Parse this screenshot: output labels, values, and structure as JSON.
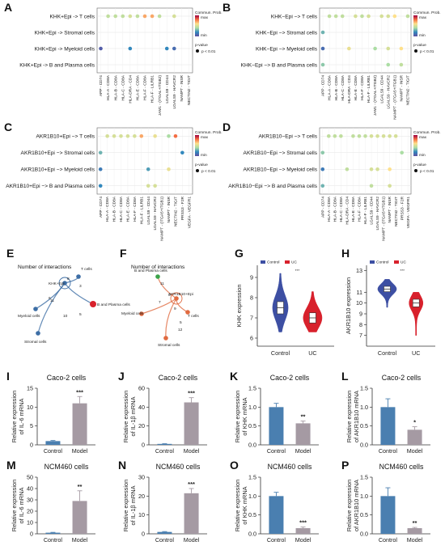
{
  "colors": {
    "control_bar": "#4a7fb0",
    "model_bar": "#a59aa3",
    "violin_control": "#3d4fa3",
    "violin_uc": "#d8212c",
    "network_khk": "#3d6ea5",
    "network_akr": "#e06a40",
    "dot_scale": [
      "#9e0142",
      "#f46d43",
      "#fee08b",
      "#abdda4",
      "#3288bd",
      "#5e4fa2"
    ]
  },
  "dot_common": {
    "legend_title": "Commun. Prob.",
    "legend_max": "max",
    "legend_min": "min",
    "pvalue_title": "p-value",
    "pvalue_item": "p < 0.01"
  },
  "dot_panels": [
    {
      "letter": "A",
      "rows": [
        "KHK+Epi -> T cells",
        "KHK+Epi -> Stromal cells",
        "KHK+Epi -> Myeloid cells",
        "KHK+Epi -> B and Plasma cells"
      ],
      "columns": [
        "APP - CD74",
        "HLA-A - CD8A",
        "HLA-B - CD8A",
        "HLA-C - CD8A",
        "HLA-DRA - CD4",
        "HLA-E - CD8A",
        "HLA-F - CD8A",
        "HLA-F - LILRB1",
        "JAM1 - (ITGAL+ITGB2)",
        "LGALS9 - CD44",
        "LGALS9 - HAVCR2",
        "NAMPT - INSR",
        "NECTIN2 - TIGIT"
      ],
      "dots": [
        [
          0,
          1,
          0.55
        ],
        [
          0,
          2,
          0.55
        ],
        [
          0,
          3,
          0.55
        ],
        [
          0,
          4,
          0.5
        ],
        [
          0,
          5,
          0.55
        ],
        [
          0,
          6,
          0.3
        ],
        [
          0,
          7,
          0.3
        ],
        [
          0,
          8,
          0.55
        ],
        [
          0,
          10,
          0.5
        ],
        [
          2,
          0,
          0.95
        ],
        [
          2,
          4,
          0.8
        ],
        [
          2,
          9,
          0.8
        ],
        [
          2,
          10,
          0.9
        ]
      ]
    },
    {
      "letter": "B",
      "rows": [
        "KHK−Epi −> T cells",
        "KHK−Epi −> Stromal cells",
        "KHK−Epi −> Myeloid cells",
        "KHK−Epi −> B and Plasma cells"
      ],
      "columns": [
        "APP - CD74",
        "HLA-A - CD8A",
        "HLA-B - CD8A",
        "HLA-C - CD8A",
        "HLA-DRA - CD4",
        "HLA-E - CD8A",
        "HLA-F - CD8A",
        "HLA-F - LILRB1",
        "JAM1 - (ITGAL+ITGB2)",
        "LGALS9 - CD44",
        "LGALS9 - HAVCR2",
        "NAMPT - (ITGA5+ITGB1)",
        "NAMPT - INSR",
        "NECTIN2 - TIGIT"
      ],
      "dots": [
        [
          0,
          1,
          0.55
        ],
        [
          0,
          2,
          0.55
        ],
        [
          0,
          3,
          0.55
        ],
        [
          0,
          5,
          0.5
        ],
        [
          0,
          6,
          0.55
        ],
        [
          0,
          7,
          0.5
        ],
        [
          0,
          9,
          0.5
        ],
        [
          0,
          10,
          0.5
        ],
        [
          0,
          11,
          0.4
        ],
        [
          0,
          13,
          0.55
        ],
        [
          1,
          0,
          0.7
        ],
        [
          2,
          0,
          0.9
        ],
        [
          2,
          4,
          0.45
        ],
        [
          2,
          8,
          0.6
        ],
        [
          2,
          10,
          0.5
        ],
        [
          2,
          12,
          0.4
        ],
        [
          3,
          0,
          0.65
        ],
        [
          3,
          10,
          0.6
        ],
        [
          3,
          12,
          0.55
        ]
      ]
    },
    {
      "letter": "C",
      "rows": [
        "AKR1B10+Epi −> T cells",
        "AKR1B10+Epi −> Stromal cells",
        "AKR1B10+Epi −> Myeloid cells",
        "AKR1B10+Epi −> B and Plasma cells"
      ],
      "columns": [
        "APP - CD74",
        "HLA-A - CD8A",
        "HLA-B - CD8A",
        "HLA-C - CD8A",
        "HLA-E - CD8A",
        "HLA-F - CD8A",
        "HLA-F - LILRB1",
        "LGALS9 - CD44",
        "LGALS9 - HAVCR2",
        "NAMPT - (ITGA5+ITGB1)",
        "NAMPT - INSR",
        "NECTIN2 - TIGIT",
        "PRSS3 - F2R",
        "VEGFA - VEGFR1"
      ],
      "dots": [
        [
          0,
          1,
          0.5
        ],
        [
          0,
          2,
          0.5
        ],
        [
          0,
          3,
          0.5
        ],
        [
          0,
          4,
          0.5
        ],
        [
          0,
          5,
          0.5
        ],
        [
          0,
          6,
          0.3
        ],
        [
          0,
          8,
          0.45
        ],
        [
          0,
          10,
          0.6
        ],
        [
          0,
          11,
          0.2
        ],
        [
          1,
          0,
          0.7
        ],
        [
          1,
          12,
          0.8
        ],
        [
          2,
          0,
          0.85
        ],
        [
          2,
          7,
          0.75
        ],
        [
          2,
          10,
          0.45
        ],
        [
          3,
          0,
          0.8
        ],
        [
          3,
          7,
          0.5
        ],
        [
          3,
          8,
          0.5
        ]
      ]
    },
    {
      "letter": "D",
      "rows": [
        "AKR1B10−Epi −> T cells",
        "AKR1B10−Epi −> Stromal cells",
        "AKR1B10−Epi −> Myeloid cells",
        "AKR1B10−Epi −> B and Plasma cells"
      ],
      "columns": [
        "APP - CD74",
        "HLA-A - CD8A",
        "HLA-B - CD8A",
        "HLA-C - CD8A",
        "HLA-DRA - CD4",
        "HLA-E - CD8A",
        "HLA-F - CD8A",
        "HLA-F - LILRB1",
        "LGALS9 - CD44",
        "LGALS9 - HAVCR2",
        "NAMPT - (ITGA5+ITGB1)",
        "NAMPT - INSR",
        "NECTIN2 - TIGIT",
        "PRSS3 - F2R",
        "VEGFA - VEGFR1"
      ],
      "dots": [
        [
          0,
          1,
          0.55
        ],
        [
          0,
          2,
          0.55
        ],
        [
          0,
          3,
          0.55
        ],
        [
          0,
          5,
          0.55
        ],
        [
          0,
          6,
          0.55
        ],
        [
          0,
          7,
          0.55
        ],
        [
          0,
          8,
          0.5
        ],
        [
          0,
          9,
          0.5
        ],
        [
          0,
          10,
          0.5
        ],
        [
          0,
          11,
          0.5
        ],
        [
          0,
          12,
          0.5
        ],
        [
          1,
          0,
          0.65
        ],
        [
          1,
          13,
          0.6
        ],
        [
          2,
          0,
          0.85
        ],
        [
          2,
          4,
          0.55
        ],
        [
          2,
          8,
          0.5
        ],
        [
          2,
          9,
          0.5
        ],
        [
          2,
          11,
          0.4
        ],
        [
          3,
          0,
          0.7
        ],
        [
          3,
          8,
          0.55
        ],
        [
          3,
          11,
          0.5
        ]
      ]
    }
  ],
  "network_panels": [
    {
      "letter": "E",
      "title": "Number of interactions",
      "source": "KHK+Epi",
      "self_label": "KHK+Epi",
      "color_key": "network_khk",
      "nodes": [
        "KHK+Epi",
        "T cells",
        "B and Plasma cells",
        "Myeloid cells",
        "Stromal cells"
      ],
      "edge_labels": [
        "8",
        "6",
        "3",
        "11",
        "10",
        "5"
      ]
    },
    {
      "letter": "F",
      "title": "Number of interactions",
      "source": "AKR1B10+Epi",
      "color_key": "network_akr",
      "nodes": [
        "B and Plasma cells",
        "AKR1B10+Epi",
        "T cells",
        "Myeloid cells",
        "Stromal cells"
      ],
      "edge_labels": [
        "11",
        "7",
        "3",
        "9",
        "5",
        "12"
      ]
    }
  ],
  "violin_panels": [
    {
      "letter": "G",
      "ylabel": "KHK expression",
      "legend": [
        "Control",
        "UC"
      ],
      "categories": [
        "Control",
        "UC"
      ],
      "yticks": [
        "6",
        "7",
        "8",
        "9"
      ],
      "sig": "***"
    },
    {
      "letter": "H",
      "ylabel": "AKR1B10 expression",
      "legend": [
        "Control",
        "UC"
      ],
      "categories": [
        "Control",
        "UC"
      ],
      "yticks": [
        "7",
        "8",
        "9",
        "10",
        "11",
        "13"
      ],
      "sig": "***"
    }
  ],
  "chart_data": [
    {
      "type": "bar",
      "panel": "I",
      "title": "Caco-2 cells",
      "ylabel": "Relative expression of IL-6 mRNA",
      "categories": [
        "Control",
        "Model"
      ],
      "values": [
        1,
        11
      ],
      "errors": [
        0.15,
        1.8
      ],
      "ylim": [
        0,
        15
      ],
      "yticks": [
        0,
        5,
        10,
        15
      ],
      "significance": [
        "",
        "***"
      ]
    },
    {
      "type": "bar",
      "panel": "J",
      "title": "Caco-2 cells",
      "ylabel": "Relative expression of IL-1β mRNA",
      "categories": [
        "Control",
        "Model"
      ],
      "values": [
        1,
        45
      ],
      "errors": [
        0.2,
        5
      ],
      "ylim": [
        0,
        60
      ],
      "yticks": [
        0,
        20,
        40,
        60
      ],
      "significance": [
        "",
        "***"
      ]
    },
    {
      "type": "bar",
      "panel": "K",
      "title": "Caco-2 cells",
      "ylabel": "Relative expression of KHK mRNA",
      "categories": [
        "Control",
        "Model"
      ],
      "values": [
        1.0,
        0.57
      ],
      "errors": [
        0.1,
        0.06
      ],
      "ylim": [
        0,
        1.5
      ],
      "yticks": [
        0.0,
        0.5,
        1.0,
        1.5
      ],
      "significance": [
        "",
        "**"
      ]
    },
    {
      "type": "bar",
      "panel": "L",
      "title": "Caco-2 cells",
      "ylabel": "Relative expression of AKR1B10 mRNA",
      "categories": [
        "Control",
        "Model"
      ],
      "values": [
        1.0,
        0.4
      ],
      "errors": [
        0.22,
        0.08
      ],
      "ylim": [
        0,
        1.5
      ],
      "yticks": [
        0.0,
        0.5,
        1.0,
        1.5
      ],
      "significance": [
        "",
        "*"
      ]
    },
    {
      "type": "bar",
      "panel": "M",
      "title": "NCM460 cells",
      "ylabel": "Relative expression of IL-6 mRNA",
      "categories": [
        "Control",
        "Model"
      ],
      "values": [
        1,
        29
      ],
      "errors": [
        0.3,
        9
      ],
      "ylim": [
        0,
        50
      ],
      "yticks": [
        0,
        10,
        20,
        30,
        40,
        50
      ],
      "significance": [
        "",
        "**"
      ]
    },
    {
      "type": "bar",
      "panel": "N",
      "title": "NCM460 cells",
      "ylabel": "Relative expression of IL-1β mRNA",
      "categories": [
        "Control",
        "Model"
      ],
      "values": [
        1,
        21.5
      ],
      "errors": [
        0.2,
        2.5
      ],
      "ylim": [
        0,
        30
      ],
      "yticks": [
        0,
        10,
        20,
        30
      ],
      "significance": [
        "",
        "***"
      ]
    },
    {
      "type": "bar",
      "panel": "O",
      "title": "NCM460 cells",
      "ylabel": "Relative expression of KHK mRNA",
      "categories": [
        "Control",
        "Model"
      ],
      "values": [
        1.0,
        0.15
      ],
      "errors": [
        0.1,
        0.03
      ],
      "ylim": [
        0,
        1.5
      ],
      "yticks": [
        0.0,
        0.5,
        1.0,
        1.5
      ],
      "significance": [
        "",
        "***"
      ]
    },
    {
      "type": "bar",
      "panel": "P",
      "title": "NCM460 cells",
      "ylabel": "Relative expression of AKR1B10 mRNA",
      "categories": [
        "Control",
        "Model"
      ],
      "values": [
        1.0,
        0.15
      ],
      "errors": [
        0.22,
        0.02
      ],
      "ylim": [
        0,
        1.5
      ],
      "yticks": [
        0.0,
        0.5,
        1.0,
        1.5
      ],
      "significance": [
        "",
        "**"
      ]
    }
  ]
}
